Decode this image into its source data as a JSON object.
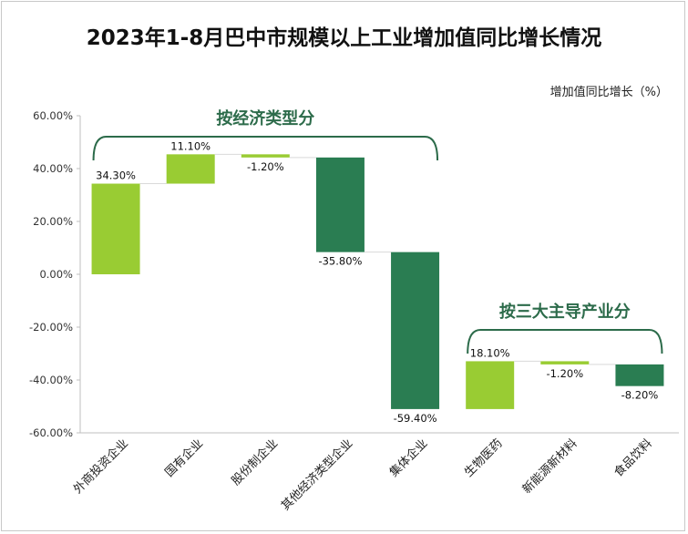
{
  "chart_data": {
    "type": "bar",
    "subtype": "waterfall",
    "title": "2023年1-8月巴中市规模以上工业增加值同比增长情况",
    "unit_label": "增加值同比增长（%）",
    "ylim": [
      -60,
      60
    ],
    "yticks": [
      60,
      40,
      20,
      0,
      -20,
      -40,
      -60
    ],
    "ytick_labels": [
      "60.00%",
      "40.00%",
      "20.00%",
      "0.00%",
      "-20.00%",
      "-40.00%",
      "-60.00%"
    ],
    "grid": false,
    "categories": [
      "外商投资企业",
      "国有企业",
      "股份制企业",
      "其他经济类型企业",
      "集体企业",
      "生物医药",
      "新能源新材料",
      "食品饮料"
    ],
    "values": [
      34.3,
      11.1,
      -1.2,
      -35.8,
      -59.4,
      18.1,
      -1.2,
      -8.2
    ],
    "bars": [
      {
        "start": 0,
        "end": 34.3
      },
      {
        "start": 34.3,
        "end": 45.4
      },
      {
        "start": 45.4,
        "end": 44.2
      },
      {
        "start": 44.2,
        "end": 8.4
      },
      {
        "start": 8.4,
        "end": -51.0
      },
      {
        "start": -51.0,
        "end": -32.9
      },
      {
        "start": -32.9,
        "end": -34.1
      },
      {
        "start": -34.1,
        "end": -42.3
      }
    ],
    "data_labels": [
      "34.30%",
      "11.10%",
      "-1.20%",
      "-35.80%",
      "-59.40%",
      "18.10%",
      "-1.20%",
      "-8.20%"
    ],
    "groups": [
      {
        "label": "按经济类型分",
        "from": 0,
        "to": 4
      },
      {
        "label": "按三大主导产业分",
        "from": 5,
        "to": 7
      }
    ],
    "colors": {
      "increase": "#99cc33",
      "decrease": "#2a7d52",
      "bracket": "#2c6b4a"
    }
  }
}
